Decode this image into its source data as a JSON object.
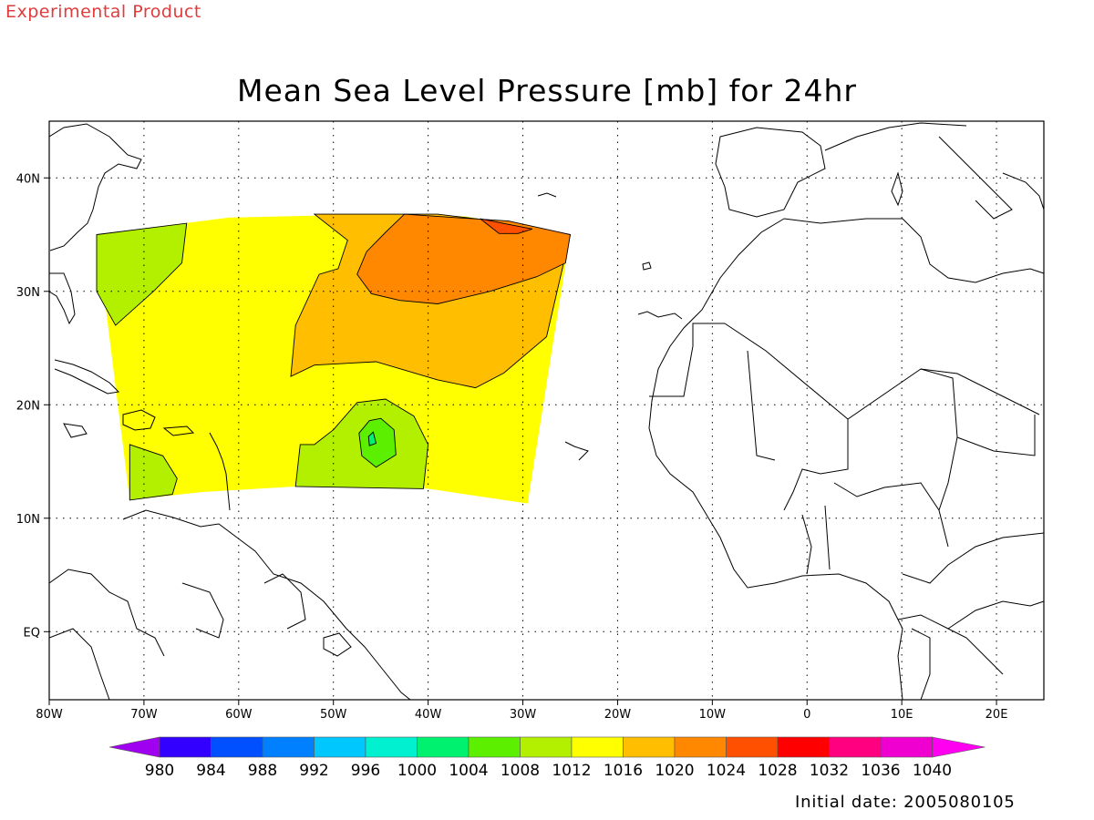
{
  "badge": "Experimental Product",
  "title": "Mean Sea Level Pressure [mb] for 24hr",
  "footer": "Initial date: 2005080105",
  "map": {
    "lon_range": [
      -80,
      25
    ],
    "lat_range": [
      -6,
      45
    ],
    "x_ticks": [
      {
        "lon": -80,
        "label": "80W"
      },
      {
        "lon": -70,
        "label": "70W"
      },
      {
        "lon": -60,
        "label": "60W"
      },
      {
        "lon": -50,
        "label": "50W"
      },
      {
        "lon": -40,
        "label": "40W"
      },
      {
        "lon": -30,
        "label": "30W"
      },
      {
        "lon": -20,
        "label": "20W"
      },
      {
        "lon": -10,
        "label": "10W"
      },
      {
        "lon": 0,
        "label": "0"
      },
      {
        "lon": 10,
        "label": "10E"
      },
      {
        "lon": 20,
        "label": "20E"
      }
    ],
    "y_ticks": [
      {
        "lat": 40,
        "label": "40N"
      },
      {
        "lat": 30,
        "label": "30N"
      },
      {
        "lat": 20,
        "label": "20N"
      },
      {
        "lat": 10,
        "label": "10N"
      },
      {
        "lat": 0,
        "label": "EQ"
      }
    ],
    "grid": "dotted",
    "domain_outline_lonlat": [
      [
        -75,
        35
      ],
      [
        -61,
        36.5
      ],
      [
        -45,
        36.8
      ],
      [
        -36,
        36.6
      ],
      [
        -25,
        35
      ],
      [
        -29.5,
        11.3
      ],
      [
        -40,
        12.6
      ],
      [
        -52,
        12.9
      ],
      [
        -64,
        12.3
      ],
      [
        -71.5,
        11.6
      ]
    ],
    "pressure_regions": [
      {
        "level": "1008-1012",
        "color": "#b3f000",
        "lonlat": [
          [
            -75,
            35
          ],
          [
            -65.5,
            36
          ],
          [
            -66,
            32.5
          ],
          [
            -69,
            30
          ],
          [
            -73,
            27
          ],
          [
            -75,
            30
          ]
        ]
      },
      {
        "level": "1016-1020",
        "color": "#ffbf00",
        "lonlat": [
          [
            -52,
            36.8
          ],
          [
            -39,
            36.8
          ],
          [
            -32,
            36.1
          ],
          [
            -25,
            35
          ],
          [
            -27.5,
            26
          ],
          [
            -32,
            22.8
          ],
          [
            -35,
            21.5
          ],
          [
            -39,
            22.2
          ],
          [
            -45.5,
            23.8
          ],
          [
            -52,
            23.5
          ],
          [
            -54.5,
            22.5
          ],
          [
            -54,
            27
          ],
          [
            -51.5,
            31.5
          ],
          [
            -49.5,
            32
          ],
          [
            -48.5,
            34.5
          ]
        ]
      },
      {
        "level": "1020-1024",
        "color": "#ff8800",
        "lonlat": [
          [
            -42.5,
            36.8
          ],
          [
            -31.5,
            36.2
          ],
          [
            -25,
            35
          ],
          [
            -25.5,
            32.5
          ],
          [
            -28.5,
            31.3
          ],
          [
            -33.5,
            30
          ],
          [
            -39,
            28.9
          ],
          [
            -43,
            29.2
          ],
          [
            -46,
            29.8
          ],
          [
            -47.5,
            31.5
          ],
          [
            -46.5,
            33.5
          ],
          [
            -44.5,
            35.2
          ]
        ]
      },
      {
        "level": "1024-1028",
        "color": "#ff5000",
        "lonlat": [
          [
            -34.5,
            36.4
          ],
          [
            -31.5,
            35.9
          ],
          [
            -29,
            35.5
          ],
          [
            -30.5,
            35.1
          ],
          [
            -32.5,
            35.1
          ]
        ]
      },
      {
        "level": "1008-1012",
        "color": "#b3f000",
        "lonlat": [
          [
            -71.5,
            16.5
          ],
          [
            -68,
            15.5
          ],
          [
            -66.5,
            13.5
          ],
          [
            -67,
            12.1
          ],
          [
            -71.5,
            11.6
          ]
        ]
      },
      {
        "level": "1008-1012",
        "color": "#b3f000",
        "lonlat": [
          [
            -54,
            12.8
          ],
          [
            -40.5,
            12.6
          ],
          [
            -40,
            16.5
          ],
          [
            -41.5,
            19
          ],
          [
            -44.5,
            20.5
          ],
          [
            -47.5,
            20.2
          ],
          [
            -50,
            17.8
          ],
          [
            -52,
            16.5
          ],
          [
            -53.5,
            16.5
          ]
        ]
      },
      {
        "level": "1004-1008",
        "color": "#5cf000",
        "lonlat": [
          [
            -45,
            18.8
          ],
          [
            -43.6,
            17.8
          ],
          [
            -43.4,
            15.6
          ],
          [
            -45.5,
            14.5
          ],
          [
            -47,
            15.5
          ],
          [
            -47.3,
            17.5
          ],
          [
            -46.2,
            18.6
          ]
        ]
      },
      {
        "level": "1000-1004",
        "color": "#00f070",
        "lonlat": [
          [
            -45.8,
            17.6
          ],
          [
            -45.5,
            16.6
          ],
          [
            -46.2,
            16.4
          ],
          [
            -46.3,
            17.2
          ]
        ]
      }
    ],
    "background_level": {
      "level": "1012-1016",
      "color": "#ffff00"
    }
  },
  "colorbar": {
    "labels": [
      "980",
      "984",
      "988",
      "992",
      "996",
      "1000",
      "1004",
      "1008",
      "1012",
      "1016",
      "1020",
      "1024",
      "1028",
      "1032",
      "1036",
      "1040"
    ],
    "colors": [
      "#a000f0",
      "#3200ff",
      "#0050ff",
      "#0080ff",
      "#00c8ff",
      "#00f0d0",
      "#00f070",
      "#5cf000",
      "#b3f000",
      "#ffff00",
      "#ffbf00",
      "#ff8800",
      "#ff5000",
      "#ff0000",
      "#ff0080",
      "#f000d0",
      "#ff00f0"
    ]
  }
}
